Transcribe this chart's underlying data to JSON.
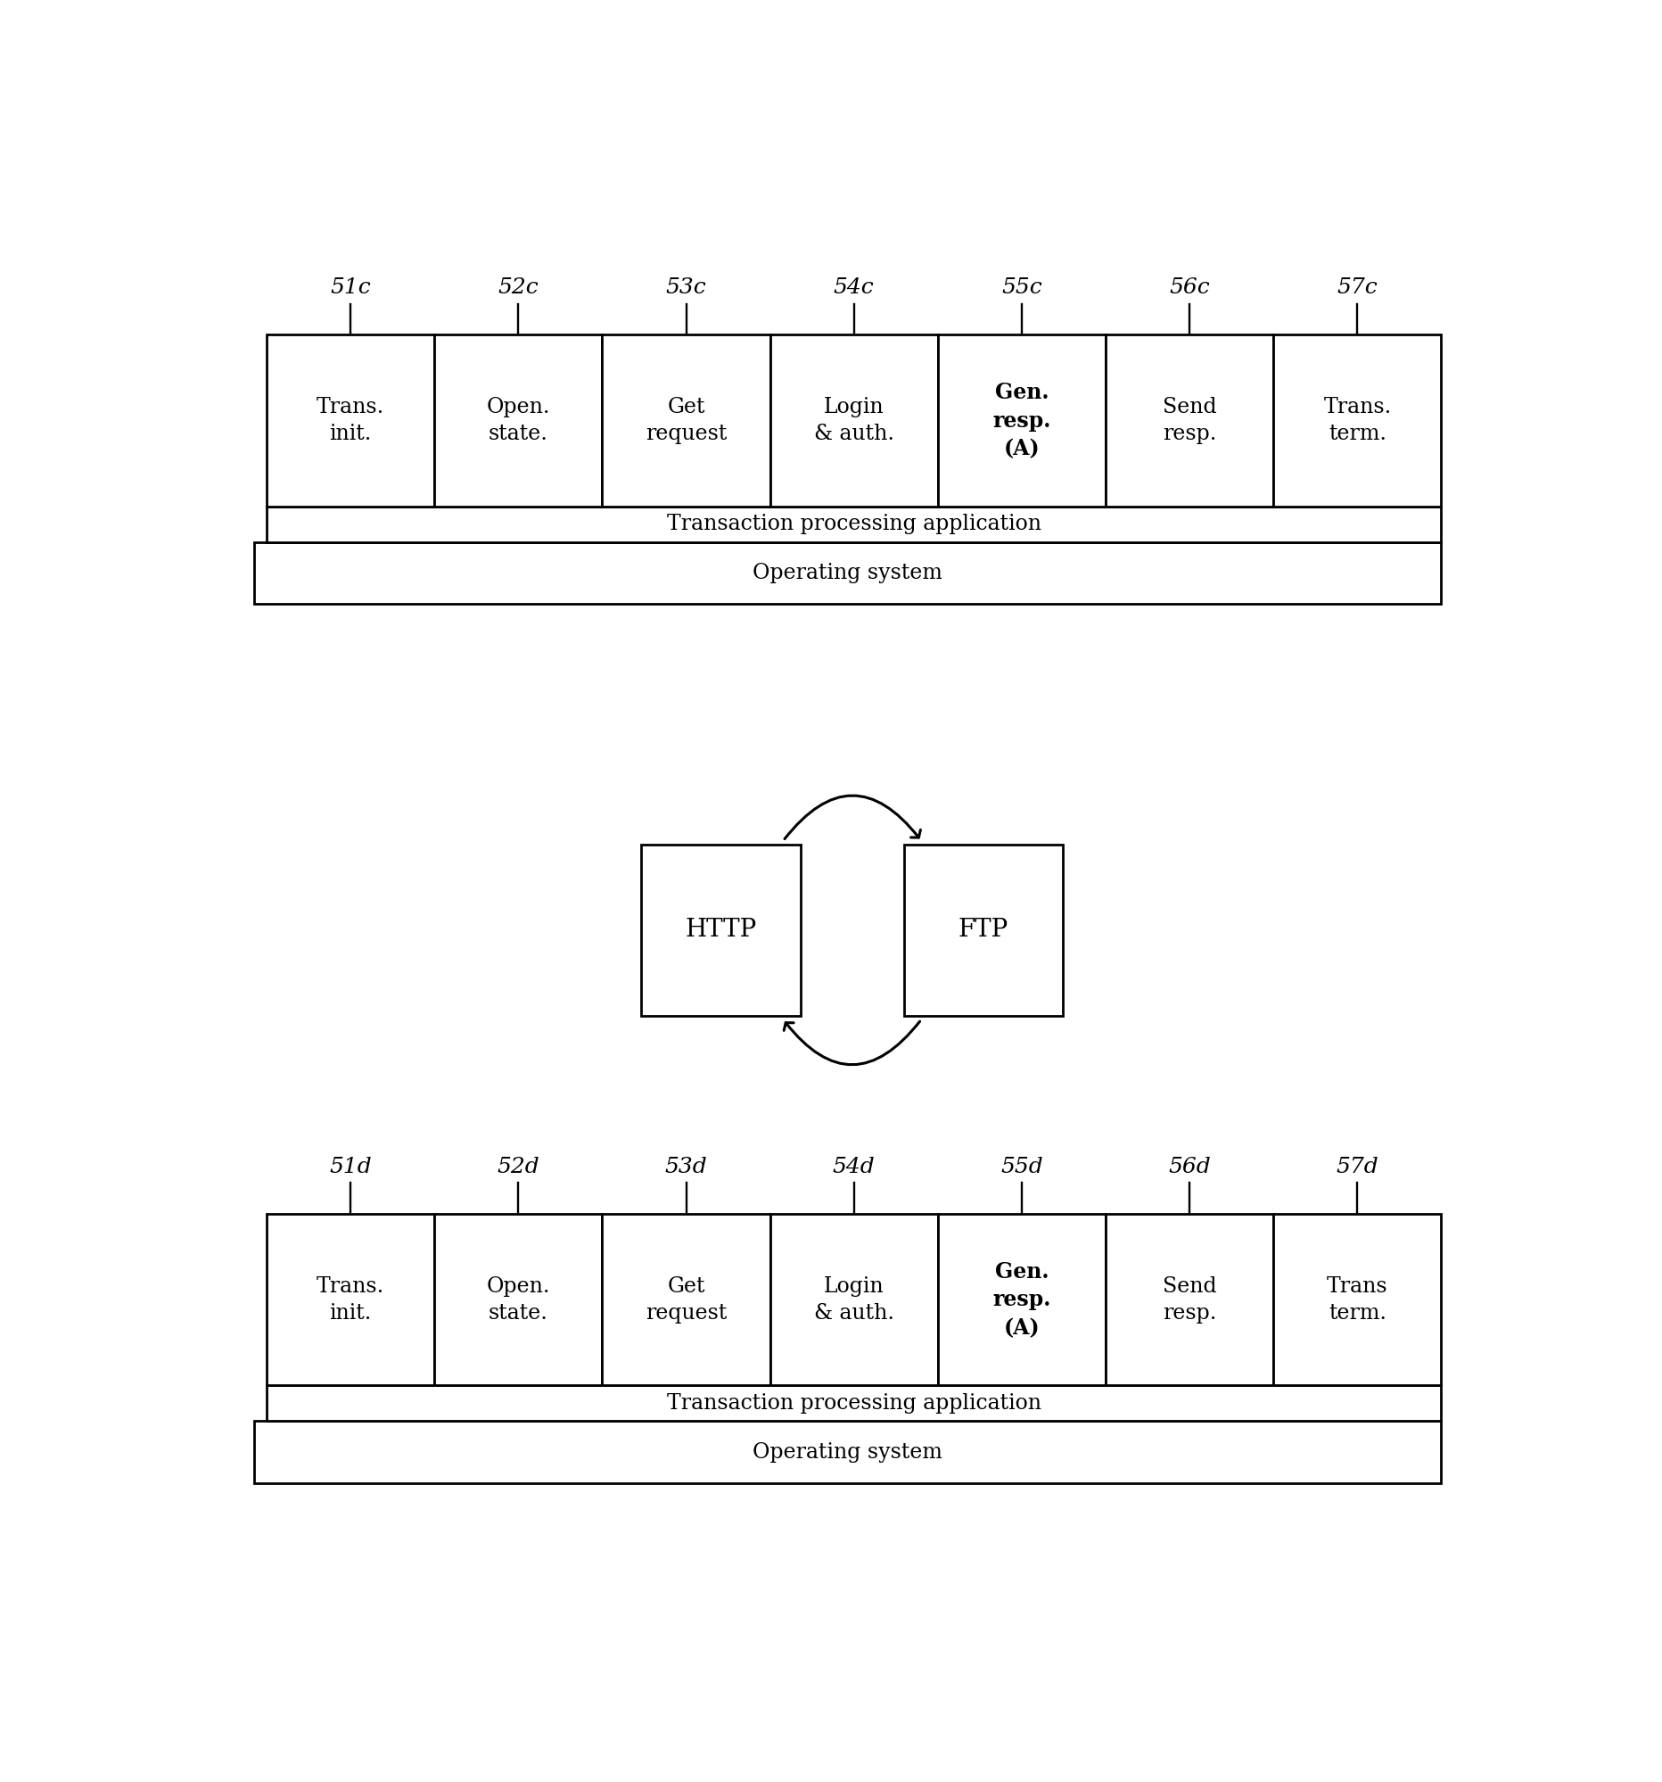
{
  "bg_color": "#ffffff",
  "modules_top": [
    "Trans.\ninit.",
    "Open.\nstate.",
    "Get\nrequest",
    "Login\n& auth.",
    "Gen.\nresp.\n(A)",
    "Send\nresp.",
    "Trans.\nterm."
  ],
  "modules_top_labels": [
    "51c",
    "52c",
    "53c",
    "54c",
    "55c",
    "56c",
    "57c"
  ],
  "modules_top_bold": [
    4
  ],
  "modules_bottom": [
    "Trans.\ninit.",
    "Open.\nstate.",
    "Get\nrequest",
    "Login\n& auth.",
    "Gen.\nresp.\n(A)",
    "Send\nresp.",
    "Trans\nterm."
  ],
  "modules_bottom_labels": [
    "51d",
    "52d",
    "53d",
    "54d",
    "55d",
    "56d",
    "57d"
  ],
  "modules_bottom_bold": [
    4
  ],
  "tpa_label": "Transaction processing application",
  "os_label": "Operating system",
  "http_label": "HTTP",
  "ftp_label": "FTP",
  "lw": 2.0,
  "font_size_module": 17,
  "font_size_label": 18,
  "font_size_bar": 17,
  "font_size_http": 20
}
